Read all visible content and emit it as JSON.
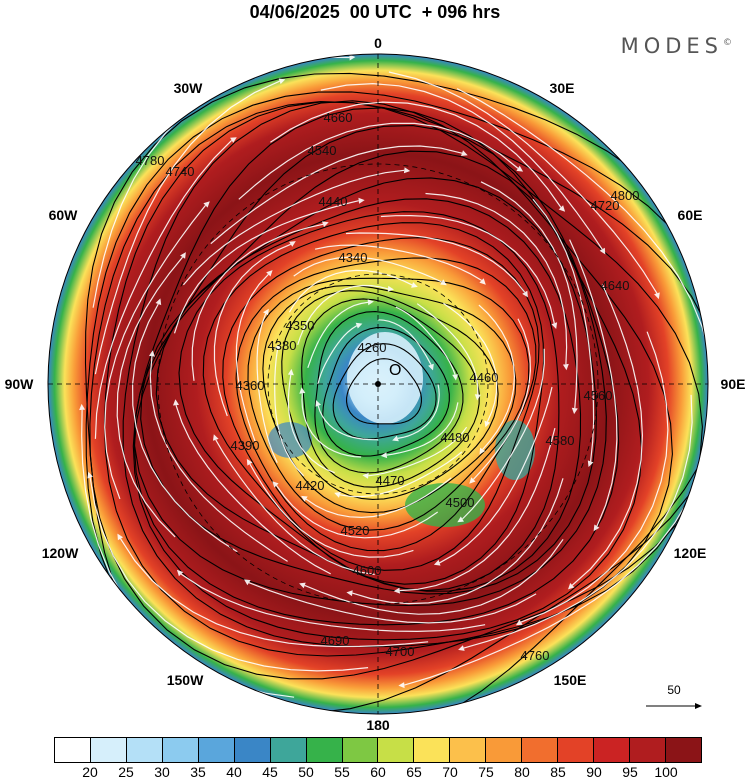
{
  "header": {
    "title": "04/06/2025  00 UTC  + 096 hrs",
    "brand": "MODES",
    "brand_mark": "©"
  },
  "longitude_labels": {
    "n": "0",
    "e30": "30E",
    "e60": "60E",
    "e90": "90E",
    "e120": "120E",
    "e150": "150E",
    "s": "180",
    "w150": "150W",
    "w120": "120W",
    "w90": "90W",
    "w60": "60W",
    "w30": "30W"
  },
  "map": {
    "projection": "north polar stereographic",
    "shaded_field_legend_units": "",
    "contour_labels": [
      "4260",
      "4340",
      "4440",
      "4540",
      "4660",
      "4740",
      "4780",
      "4800",
      "4720",
      "4640",
      "4580",
      "4560",
      "4460",
      "4480",
      "4500",
      "4520",
      "4420",
      "4600",
      "4690",
      "4700",
      "4760",
      "4380",
      "4360",
      "4350",
      "4390",
      "4470"
    ]
  },
  "vector_key": {
    "value": "50"
  },
  "colorbar": {
    "ticks": [
      "20",
      "25",
      "30",
      "35",
      "40",
      "45",
      "50",
      "55",
      "60",
      "65",
      "70",
      "75",
      "80",
      "85",
      "90",
      "95",
      "100"
    ],
    "colors": [
      "#ffffff",
      "#d6effb",
      "#b4e0f7",
      "#8ccbef",
      "#5aa6dc",
      "#3a86c6",
      "#3ea69a",
      "#36b24a",
      "#7ec843",
      "#c7df47",
      "#fbe259",
      "#fcc04b",
      "#f99a38",
      "#f16e2e",
      "#e34227",
      "#cb2323",
      "#b01d1f",
      "#8b1417"
    ]
  }
}
